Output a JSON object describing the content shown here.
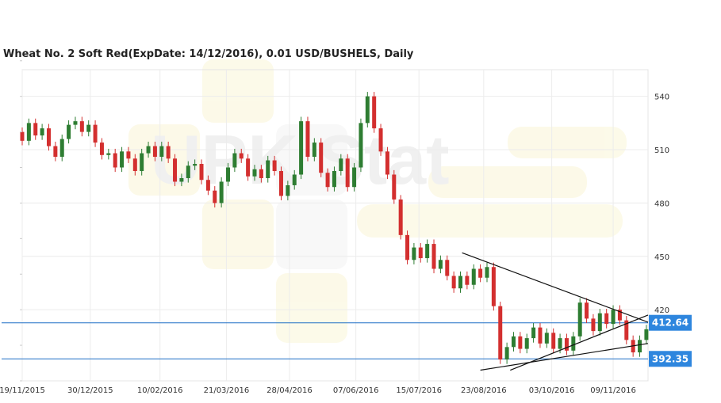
{
  "chart_data": {
    "type": "candlestick",
    "title": "Wheat  No. 2 Soft Red(ExpDate: 14/12/2016), 0.01 USD/BUSHELS, Daily",
    "x_tick_labels": [
      "19/11/2015",
      "30/12/2015",
      "10/02/2016",
      "21/03/2016",
      "28/04/2016",
      "07/06/2016",
      "15/07/2016",
      "23/08/2016",
      "03/10/2016",
      "09/11/2016"
    ],
    "y_tick_values": [
      540,
      510,
      480,
      450,
      420
    ],
    "ylim": [
      380,
      555
    ],
    "grid": true,
    "watermark": "UPK Stat",
    "colors": {
      "up": "#2e7d32",
      "down": "#d32f2f",
      "level": "#1f6fc5",
      "label_bg": "#2e86de",
      "trend": "#111111"
    },
    "horizontal_levels": [
      {
        "value": 412.64,
        "label": "412.64"
      },
      {
        "value": 392.35,
        "label": "392.35"
      }
    ],
    "trendlines": [
      {
        "from": [
          "2016-08-10",
          452
        ],
        "to": [
          "2016-11-30",
          413
        ]
      },
      {
        "from": [
          "2016-08-21",
          386
        ],
        "to": [
          "2016-11-30",
          401
        ]
      },
      {
        "from": [
          "2016-09-08",
          386
        ],
        "to": [
          "2016-11-30",
          417
        ]
      }
    ],
    "candles": [
      {
        "d": "2015-11-19",
        "o": 520,
        "c": 515
      },
      {
        "d": "2015-11-23",
        "o": 515,
        "c": 525
      },
      {
        "d": "2015-11-27",
        "o": 525,
        "c": 518
      },
      {
        "d": "2015-12-01",
        "o": 518,
        "c": 522
      },
      {
        "d": "2015-12-05",
        "o": 522,
        "c": 512
      },
      {
        "d": "2015-12-09",
        "o": 512,
        "c": 506
      },
      {
        "d": "2015-12-13",
        "o": 506,
        "c": 516
      },
      {
        "d": "2015-12-17",
        "o": 516,
        "c": 524
      },
      {
        "d": "2015-12-21",
        "o": 524,
        "c": 526
      },
      {
        "d": "2015-12-25",
        "o": 526,
        "c": 520
      },
      {
        "d": "2015-12-29",
        "o": 520,
        "c": 524
      },
      {
        "d": "2016-01-02",
        "o": 524,
        "c": 514
      },
      {
        "d": "2016-01-06",
        "o": 514,
        "c": 507
      },
      {
        "d": "2016-01-10",
        "o": 507,
        "c": 508
      },
      {
        "d": "2016-01-14",
        "o": 508,
        "c": 500
      },
      {
        "d": "2016-01-18",
        "o": 500,
        "c": 509
      },
      {
        "d": "2016-01-22",
        "o": 509,
        "c": 505
      },
      {
        "d": "2016-01-26",
        "o": 505,
        "c": 498
      },
      {
        "d": "2016-01-30",
        "o": 498,
        "c": 508
      },
      {
        "d": "2016-02-03",
        "o": 508,
        "c": 512
      },
      {
        "d": "2016-02-07",
        "o": 512,
        "c": 506
      },
      {
        "d": "2016-02-11",
        "o": 506,
        "c": 512
      },
      {
        "d": "2016-02-15",
        "o": 512,
        "c": 505
      },
      {
        "d": "2016-02-19",
        "o": 505,
        "c": 492
      },
      {
        "d": "2016-02-23",
        "o": 492,
        "c": 494
      },
      {
        "d": "2016-02-27",
        "o": 494,
        "c": 501
      },
      {
        "d": "2016-03-02",
        "o": 501,
        "c": 502
      },
      {
        "d": "2016-03-06",
        "o": 502,
        "c": 493
      },
      {
        "d": "2016-03-10",
        "o": 493,
        "c": 487
      },
      {
        "d": "2016-03-14",
        "o": 487,
        "c": 480
      },
      {
        "d": "2016-03-18",
        "o": 480,
        "c": 492
      },
      {
        "d": "2016-03-22",
        "o": 492,
        "c": 500
      },
      {
        "d": "2016-03-26",
        "o": 500,
        "c": 508
      },
      {
        "d": "2016-03-30",
        "o": 508,
        "c": 505
      },
      {
        "d": "2016-04-03",
        "o": 505,
        "c": 495
      },
      {
        "d": "2016-04-07",
        "o": 495,
        "c": 499
      },
      {
        "d": "2016-04-11",
        "o": 499,
        "c": 494
      },
      {
        "d": "2016-04-15",
        "o": 494,
        "c": 504
      },
      {
        "d": "2016-04-19",
        "o": 504,
        "c": 498
      },
      {
        "d": "2016-04-23",
        "o": 498,
        "c": 484
      },
      {
        "d": "2016-04-27",
        "o": 484,
        "c": 490
      },
      {
        "d": "2016-05-01",
        "o": 490,
        "c": 496
      },
      {
        "d": "2016-05-05",
        "o": 496,
        "c": 526
      },
      {
        "d": "2016-05-09",
        "o": 526,
        "c": 506
      },
      {
        "d": "2016-05-13",
        "o": 506,
        "c": 514
      },
      {
        "d": "2016-05-17",
        "o": 514,
        "c": 497
      },
      {
        "d": "2016-05-21",
        "o": 497,
        "c": 489
      },
      {
        "d": "2016-05-25",
        "o": 489,
        "c": 498
      },
      {
        "d": "2016-05-29",
        "o": 498,
        "c": 505
      },
      {
        "d": "2016-06-02",
        "o": 505,
        "c": 489
      },
      {
        "d": "2016-06-06",
        "o": 489,
        "c": 500
      },
      {
        "d": "2016-06-10",
        "o": 500,
        "c": 525
      },
      {
        "d": "2016-06-14",
        "o": 525,
        "c": 540
      },
      {
        "d": "2016-06-18",
        "o": 540,
        "c": 522
      },
      {
        "d": "2016-06-22",
        "o": 522,
        "c": 509
      },
      {
        "d": "2016-06-26",
        "o": 509,
        "c": 496
      },
      {
        "d": "2016-06-30",
        "o": 496,
        "c": 482
      },
      {
        "d": "2016-07-04",
        "o": 482,
        "c": 462
      },
      {
        "d": "2016-07-08",
        "o": 462,
        "c": 448
      },
      {
        "d": "2016-07-12",
        "o": 448,
        "c": 455
      },
      {
        "d": "2016-07-16",
        "o": 455,
        "c": 449
      },
      {
        "d": "2016-07-20",
        "o": 449,
        "c": 457
      },
      {
        "d": "2016-07-24",
        "o": 457,
        "c": 443
      },
      {
        "d": "2016-07-28",
        "o": 443,
        "c": 448
      },
      {
        "d": "2016-08-01",
        "o": 448,
        "c": 439
      },
      {
        "d": "2016-08-05",
        "o": 439,
        "c": 432
      },
      {
        "d": "2016-08-09",
        "o": 432,
        "c": 439
      },
      {
        "d": "2016-08-13",
        "o": 439,
        "c": 434
      },
      {
        "d": "2016-08-17",
        "o": 434,
        "c": 443
      },
      {
        "d": "2016-08-21",
        "o": 443,
        "c": 438
      },
      {
        "d": "2016-08-25",
        "o": 438,
        "c": 444
      },
      {
        "d": "2016-08-29",
        "o": 444,
        "c": 422
      },
      {
        "d": "2016-09-02",
        "o": 422,
        "c": 392
      },
      {
        "d": "2016-09-06",
        "o": 392,
        "c": 399
      },
      {
        "d": "2016-09-10",
        "o": 399,
        "c": 405
      },
      {
        "d": "2016-09-14",
        "o": 405,
        "c": 398
      },
      {
        "d": "2016-09-18",
        "o": 398,
        "c": 404
      },
      {
        "d": "2016-09-22",
        "o": 404,
        "c": 410
      },
      {
        "d": "2016-09-26",
        "o": 410,
        "c": 401
      },
      {
        "d": "2016-09-30",
        "o": 401,
        "c": 407
      },
      {
        "d": "2016-10-04",
        "o": 407,
        "c": 398
      },
      {
        "d": "2016-10-08",
        "o": 398,
        "c": 404
      },
      {
        "d": "2016-10-12",
        "o": 404,
        "c": 397
      },
      {
        "d": "2016-10-16",
        "o": 397,
        "c": 405
      },
      {
        "d": "2016-10-20",
        "o": 405,
        "c": 424
      },
      {
        "d": "2016-10-24",
        "o": 424,
        "c": 415
      },
      {
        "d": "2016-10-28",
        "o": 415,
        "c": 408
      },
      {
        "d": "2016-11-01",
        "o": 408,
        "c": 418
      },
      {
        "d": "2016-11-05",
        "o": 418,
        "c": 412
      },
      {
        "d": "2016-11-09",
        "o": 412,
        "c": 420
      },
      {
        "d": "2016-11-13",
        "o": 420,
        "c": 414
      },
      {
        "d": "2016-11-17",
        "o": 414,
        "c": 403
      },
      {
        "d": "2016-11-21",
        "o": 403,
        "c": 396
      },
      {
        "d": "2016-11-25",
        "o": 396,
        "c": 403
      },
      {
        "d": "2016-11-29",
        "o": 403,
        "c": 409
      }
    ]
  }
}
